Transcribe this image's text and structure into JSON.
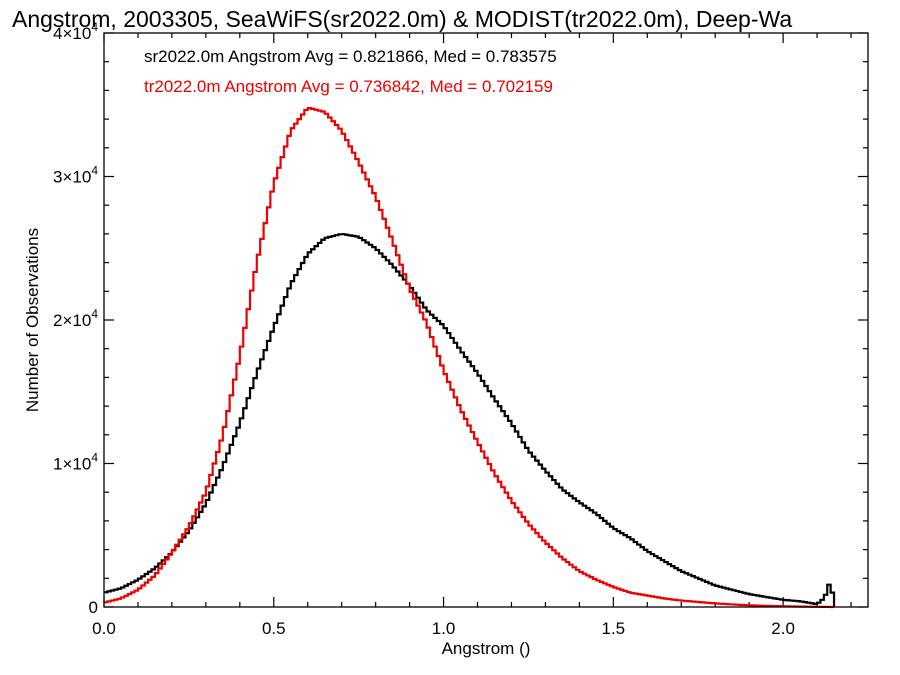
{
  "chart_data": {
    "type": "line",
    "title": "Angstrom, 2003305, SeaWiFS(sr2022.0m) & MODIST(tr2022.0m), Deep-Wa",
    "xlabel": "Angstrom ()",
    "ylabel": "Number of Observations",
    "xlim": [
      0.0,
      2.25
    ],
    "ylim": [
      0,
      40000
    ],
    "grid": false,
    "x_ticks": [
      {
        "value": 0.0,
        "label": "0.0"
      },
      {
        "value": 0.5,
        "label": "0.5"
      },
      {
        "value": 1.0,
        "label": "1.0"
      },
      {
        "value": 1.5,
        "label": "1.5"
      },
      {
        "value": 2.0,
        "label": "2.0"
      }
    ],
    "y_ticks": [
      {
        "value": 0,
        "mantissa": "0",
        "exponent": ""
      },
      {
        "value": 10000,
        "mantissa": "1×10",
        "exponent": "4"
      },
      {
        "value": 20000,
        "mantissa": "2×10",
        "exponent": "4"
      },
      {
        "value": 30000,
        "mantissa": "3×10",
        "exponent": "4"
      },
      {
        "value": 40000,
        "mantissa": "4×10",
        "exponent": "4"
      }
    ],
    "annotations": [
      {
        "text": "sr2022.0m Angstrom Avg = 0.821866, Med = 0.783575",
        "color": "#000000"
      },
      {
        "text": "tr2022.0m Angstrom Avg = 0.736842, Med = 0.702159",
        "color": "#ee0000"
      }
    ],
    "series": [
      {
        "color": "#000000",
        "x": [
          0.0,
          0.05,
          0.1,
          0.15,
          0.2,
          0.25,
          0.3,
          0.35,
          0.4,
          0.45,
          0.5,
          0.55,
          0.6,
          0.65,
          0.7,
          0.75,
          0.8,
          0.85,
          0.9,
          0.95,
          1.0,
          1.05,
          1.1,
          1.15,
          1.2,
          1.25,
          1.3,
          1.35,
          1.4,
          1.45,
          1.5,
          1.55,
          1.6,
          1.65,
          1.7,
          1.75,
          1.8,
          1.85,
          1.9,
          1.95,
          2.0,
          2.05,
          2.1,
          2.12,
          2.13,
          2.14,
          2.15
        ],
        "y": [
          1000,
          1300,
          1900,
          2700,
          3800,
          5300,
          7200,
          9800,
          12800,
          16300,
          19500,
          22500,
          24600,
          25700,
          26000,
          25800,
          25000,
          23800,
          22400,
          20700,
          19600,
          17900,
          16300,
          14500,
          12800,
          10900,
          9500,
          8200,
          7300,
          6500,
          5500,
          4800,
          3900,
          3200,
          2500,
          2000,
          1500,
          1200,
          900,
          700,
          500,
          400,
          200,
          600,
          1100,
          2000,
          0
        ]
      },
      {
        "color": "#ee0000",
        "x": [
          0.0,
          0.05,
          0.1,
          0.15,
          0.2,
          0.25,
          0.3,
          0.35,
          0.4,
          0.45,
          0.5,
          0.55,
          0.6,
          0.65,
          0.7,
          0.75,
          0.8,
          0.85,
          0.9,
          0.95,
          1.0,
          1.05,
          1.1,
          1.15,
          1.2,
          1.25,
          1.3,
          1.35,
          1.4,
          1.45,
          1.5,
          1.55,
          1.6,
          1.65,
          1.7,
          1.75,
          1.8,
          1.85,
          1.9,
          1.95,
          2.0,
          2.05,
          2.1,
          2.15
        ],
        "y": [
          300,
          600,
          1200,
          2200,
          3800,
          5600,
          8000,
          12000,
          17500,
          24000,
          29500,
          33200,
          34800,
          34500,
          33200,
          31000,
          28600,
          25500,
          22200,
          19800,
          16500,
          13800,
          11500,
          9300,
          7400,
          5800,
          4500,
          3400,
          2500,
          1900,
          1400,
          1000,
          800,
          600,
          450,
          350,
          250,
          180,
          120,
          80,
          50,
          30,
          15,
          0
        ]
      }
    ]
  }
}
